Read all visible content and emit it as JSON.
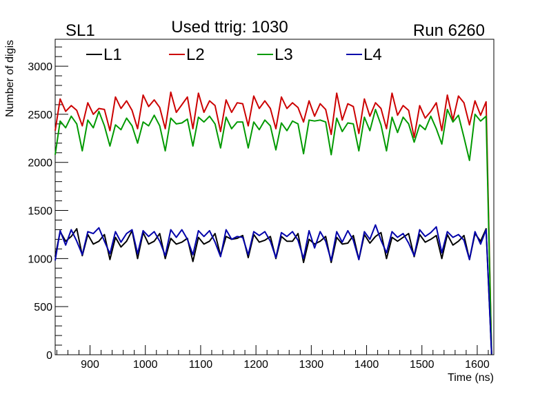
{
  "header": {
    "left_label": "SL1",
    "center_label": "Used ttrig: 1030",
    "right_label": "Run 6260"
  },
  "chart_data": {
    "type": "line",
    "title": "Used ttrig: 1030",
    "xlabel": "Time (ns)",
    "ylabel": "Number of digis",
    "xlim": [
      837,
      1630
    ],
    "ylim": [
      0,
      3280
    ],
    "xticks": [
      900,
      1000,
      1100,
      1200,
      1300,
      1400,
      1500,
      1600
    ],
    "yticks": [
      0,
      500,
      1000,
      1500,
      2000,
      2500,
      3000
    ],
    "legend_position": "top",
    "grid": false,
    "x": [
      837,
      846,
      856,
      866,
      876,
      886,
      896,
      906,
      916,
      926,
      936,
      946,
      956,
      966,
      976,
      986,
      996,
      1006,
      1016,
      1026,
      1036,
      1046,
      1056,
      1066,
      1076,
      1086,
      1096,
      1106,
      1116,
      1126,
      1136,
      1146,
      1156,
      1166,
      1176,
      1186,
      1196,
      1206,
      1216,
      1226,
      1236,
      1246,
      1256,
      1266,
      1276,
      1286,
      1296,
      1306,
      1316,
      1326,
      1336,
      1346,
      1356,
      1366,
      1376,
      1386,
      1396,
      1406,
      1416,
      1426,
      1436,
      1446,
      1456,
      1466,
      1476,
      1486,
      1496,
      1506,
      1516,
      1526,
      1536,
      1546,
      1556,
      1566,
      1576,
      1586,
      1596,
      1606,
      1616,
      1626
    ],
    "series": [
      {
        "name": "L1",
        "color": "#000000",
        "values": [
          1020,
          1280,
          1180,
          1230,
          1310,
          1030,
          1250,
          1150,
          1180,
          1250,
          990,
          1220,
          1120,
          1180,
          1290,
          1000,
          1270,
          1150,
          1180,
          1260,
          1000,
          1210,
          1150,
          1170,
          1210,
          970,
          1220,
          1150,
          1180,
          1260,
          1030,
          1230,
          1200,
          1210,
          1240,
          1010,
          1250,
          1170,
          1190,
          1230,
          1000,
          1230,
          1180,
          1180,
          1260,
          960,
          1200,
          1150,
          1180,
          1230,
          960,
          1220,
          1150,
          1160,
          1240,
          990,
          1250,
          1160,
          1230,
          1270,
          1000,
          1220,
          1180,
          1220,
          1260,
          1020,
          1250,
          1170,
          1200,
          1240,
          1000,
          1250,
          1140,
          1180,
          1240,
          990,
          1260,
          1180,
          1310,
          5
        ],
        "label": "L1"
      },
      {
        "name": "L2",
        "color": "#cc0000",
        "values": [
          2330,
          2660,
          2530,
          2590,
          2540,
          2380,
          2620,
          2500,
          2560,
          2550,
          2330,
          2680,
          2560,
          2640,
          2540,
          2350,
          2700,
          2580,
          2650,
          2570,
          2350,
          2730,
          2520,
          2600,
          2680,
          2350,
          2720,
          2520,
          2640,
          2590,
          2320,
          2650,
          2520,
          2620,
          2610,
          2380,
          2690,
          2560,
          2640,
          2560,
          2350,
          2680,
          2560,
          2620,
          2570,
          2420,
          2640,
          2480,
          2610,
          2550,
          2290,
          2720,
          2440,
          2610,
          2580,
          2300,
          2660,
          2480,
          2620,
          2560,
          2350,
          2720,
          2490,
          2590,
          2540,
          2260,
          2590,
          2460,
          2530,
          2620,
          2330,
          2700,
          2440,
          2690,
          2620,
          2390,
          2640,
          2490,
          2630,
          5
        ],
        "label": "L2"
      },
      {
        "name": "L3",
        "color": "#009900",
        "values": [
          2080,
          2430,
          2360,
          2480,
          2400,
          2120,
          2440,
          2360,
          2530,
          2380,
          2170,
          2390,
          2340,
          2460,
          2380,
          2200,
          2420,
          2380,
          2490,
          2380,
          2120,
          2460,
          2400,
          2410,
          2450,
          2170,
          2470,
          2420,
          2480,
          2400,
          2150,
          2470,
          2350,
          2420,
          2420,
          2150,
          2420,
          2340,
          2440,
          2380,
          2130,
          2410,
          2330,
          2430,
          2400,
          2090,
          2440,
          2430,
          2440,
          2420,
          2080,
          2460,
          2320,
          2410,
          2400,
          2120,
          2470,
          2330,
          2550,
          2390,
          2120,
          2470,
          2310,
          2470,
          2400,
          2210,
          2390,
          2340,
          2480,
          2350,
          2190,
          2550,
          2420,
          2490,
          2260,
          2020,
          2500,
          2430,
          2480,
          5
        ],
        "label": "L3"
      },
      {
        "name": "L4",
        "color": "#0000aa",
        "values": [
          980,
          1290,
          1140,
          1300,
          1180,
          1040,
          1280,
          1260,
          1320,
          1180,
          1050,
          1280,
          1170,
          1260,
          1300,
          1050,
          1290,
          1230,
          1280,
          1180,
          1030,
          1300,
          1220,
          1300,
          1200,
          1040,
          1290,
          1230,
          1290,
          1170,
          1020,
          1300,
          1200,
          1230,
          1220,
          1040,
          1280,
          1240,
          1280,
          1180,
          1010,
          1270,
          1230,
          1280,
          1190,
          1000,
          1290,
          1110,
          1280,
          1180,
          980,
          1280,
          1170,
          1290,
          1190,
          990,
          1280,
          1200,
          1350,
          1190,
          1060,
          1280,
          1220,
          1260,
          1160,
          1030,
          1300,
          1230,
          1270,
          1330,
          1060,
          1280,
          1220,
          1250,
          1190,
          990,
          1280,
          1150,
          1300,
          5
        ],
        "label": "L4"
      }
    ]
  }
}
